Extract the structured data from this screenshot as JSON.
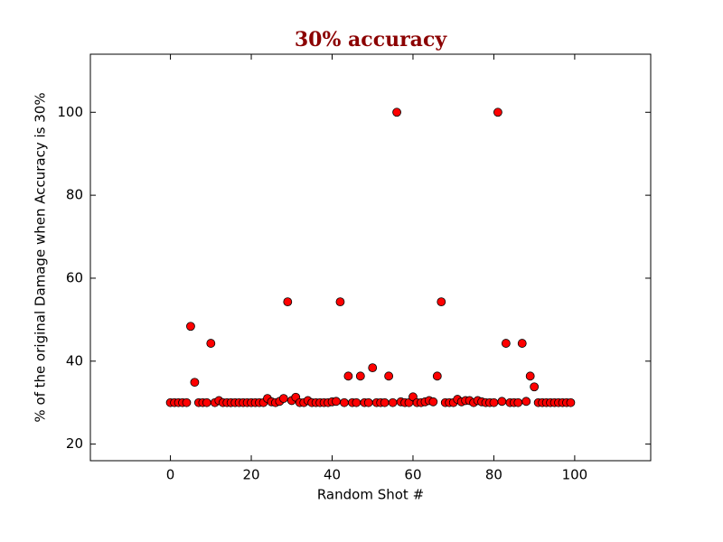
{
  "chart_data": {
    "type": "scatter",
    "title": "30% accuracy",
    "title_color": "#8b0000",
    "x_label": "Random Shot #",
    "y_label": "% of the original Damage when Accuracy is 30%",
    "x": [
      0,
      1,
      2,
      3,
      4,
      5,
      6,
      7,
      8,
      9,
      10,
      11,
      12,
      13,
      14,
      15,
      16,
      17,
      18,
      19,
      20,
      21,
      22,
      23,
      24,
      25,
      26,
      27,
      28,
      29,
      30,
      31,
      32,
      33,
      34,
      35,
      36,
      37,
      38,
      39,
      40,
      41,
      42,
      43,
      44,
      45,
      46,
      47,
      48,
      49,
      50,
      51,
      52,
      53,
      54,
      55,
      56,
      57,
      58,
      59,
      60,
      61,
      62,
      63,
      64,
      65,
      66,
      67,
      68,
      69,
      70,
      71,
      72,
      73,
      74,
      75,
      76,
      77,
      78,
      79,
      80,
      81,
      82,
      83,
      84,
      85,
      86,
      87,
      88,
      89,
      90,
      91,
      92,
      93,
      94,
      95,
      96,
      97,
      98,
      99
    ],
    "series": [
      {
        "color": "#ff0000",
        "edge_color": "#000000",
        "values": [
          30,
          30,
          30,
          30,
          30,
          48.4,
          34.9,
          30,
          30,
          30,
          44.3,
          30,
          30.5,
          30,
          30,
          30,
          30,
          30,
          30,
          30,
          30,
          30,
          30,
          30,
          31,
          30.2,
          30,
          30.3,
          31,
          54.3,
          30.5,
          31.3,
          30,
          30,
          30.5,
          30,
          30,
          30,
          30,
          30,
          30.2,
          30.3,
          54.3,
          30,
          36.4,
          30,
          30,
          36.4,
          30,
          30,
          38.4,
          30,
          30,
          30,
          36.4,
          30,
          100,
          30.2,
          30,
          30,
          31.4,
          30,
          30,
          30.2,
          30.5,
          30.2,
          36.4,
          54.3,
          30,
          30,
          30,
          30.8,
          30.2,
          30.5,
          30.5,
          30,
          30.5,
          30.2,
          30,
          30,
          30,
          100,
          30.3,
          44.3,
          30,
          30,
          30,
          44.3,
          30.3,
          36.4,
          33.8,
          30,
          30,
          30,
          30,
          30,
          30,
          30,
          30,
          30
        ]
      }
    ],
    "xlim": [
      -19.8,
      118.8
    ],
    "ylim": [
      16,
      114
    ],
    "xticks": [
      0,
      20,
      40,
      60,
      80,
      100
    ],
    "yticks": [
      20,
      40,
      60,
      80,
      100
    ],
    "grid": false
  }
}
